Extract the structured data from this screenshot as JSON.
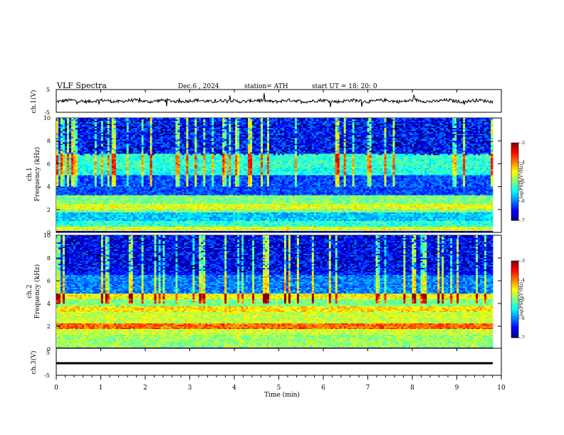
{
  "header": {
    "title": "VLF  Spectra",
    "date": "Dec.6  , 2024",
    "station": "station= ATH",
    "start": "start  UT  =    18: 20: 0"
  },
  "chart_data": [
    {
      "type": "line",
      "panel": "ch1-waveform",
      "ylabel": "ch.1(V)",
      "ylim": [
        -5,
        5
      ],
      "yticks": [
        "5",
        "-5"
      ],
      "xlim": [
        0,
        10
      ],
      "description_values": {
        "mean": 0,
        "noise_amplitude": 1
      }
    },
    {
      "type": "heatmap",
      "panel": "ch1-spectrogram",
      "ylabel": "ch.1\nFrequency  (kHz)",
      "ylabel_line1": "ch.1",
      "ylabel_line2": "Frequency  (kHz)",
      "ylim": [
        0,
        10
      ],
      "yticks": [
        "0",
        "2",
        "4",
        "6",
        "8",
        "10"
      ],
      "xlim": [
        0,
        10
      ],
      "colorbar": {
        "label": "log(PSD)(V²/Hz)",
        "range": [
          -7,
          -3
        ],
        "ticks": [
          "-3",
          "-4",
          "-5",
          "-6",
          "-7"
        ]
      }
    },
    {
      "type": "heatmap",
      "panel": "ch2-spectrogram",
      "ylabel_line1": "ch.2",
      "ylabel_line2": "Frequency  (kHz)",
      "ylim": [
        0,
        10
      ],
      "yticks": [
        "0",
        "2",
        "4",
        "6",
        "8",
        "10"
      ],
      "xlim": [
        0,
        10
      ],
      "colorbar": {
        "label": "log(PSD)(V²/Hz)",
        "range": [
          -7,
          -3
        ],
        "ticks": [
          "-3",
          "-4",
          "-5",
          "-6",
          "-7"
        ]
      }
    },
    {
      "type": "line",
      "panel": "ch3-waveform",
      "ylabel": "ch.3(V)",
      "ylim": [
        -5,
        5
      ],
      "yticks": [
        "5",
        "0",
        "-5"
      ],
      "xlim": [
        0,
        10
      ],
      "description_values": {
        "mean": -1.5
      }
    }
  ],
  "xaxis": {
    "label": "Time  (min)",
    "ticks": [
      "0",
      "1",
      "2",
      "3",
      "4",
      "5",
      "6",
      "7",
      "8",
      "9",
      "10"
    ]
  }
}
